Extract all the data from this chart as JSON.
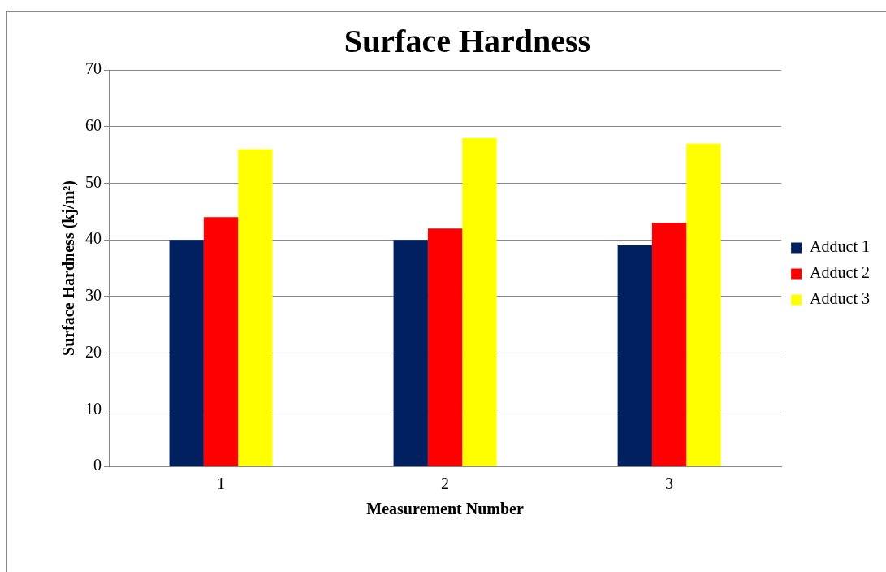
{
  "chart_data": {
    "type": "bar",
    "title": "Surface Hardness",
    "xlabel": "Measurement Number",
    "ylabel": "Surface Hardness (kj/m²)",
    "categories": [
      "1",
      "2",
      "3"
    ],
    "series": [
      {
        "name": "Adduct 1",
        "color": "#002060",
        "values": [
          40,
          40,
          39
        ]
      },
      {
        "name": "Adduct 2",
        "color": "#ff0000",
        "values": [
          44,
          42,
          43
        ]
      },
      {
        "name": "Adduct 3",
        "color": "#ffff00",
        "values": [
          56,
          58,
          57
        ]
      }
    ],
    "ylim": [
      0,
      70
    ],
    "yticks": [
      0,
      10,
      20,
      30,
      40,
      50,
      60,
      70
    ],
    "grid": "y",
    "legend": "right"
  }
}
